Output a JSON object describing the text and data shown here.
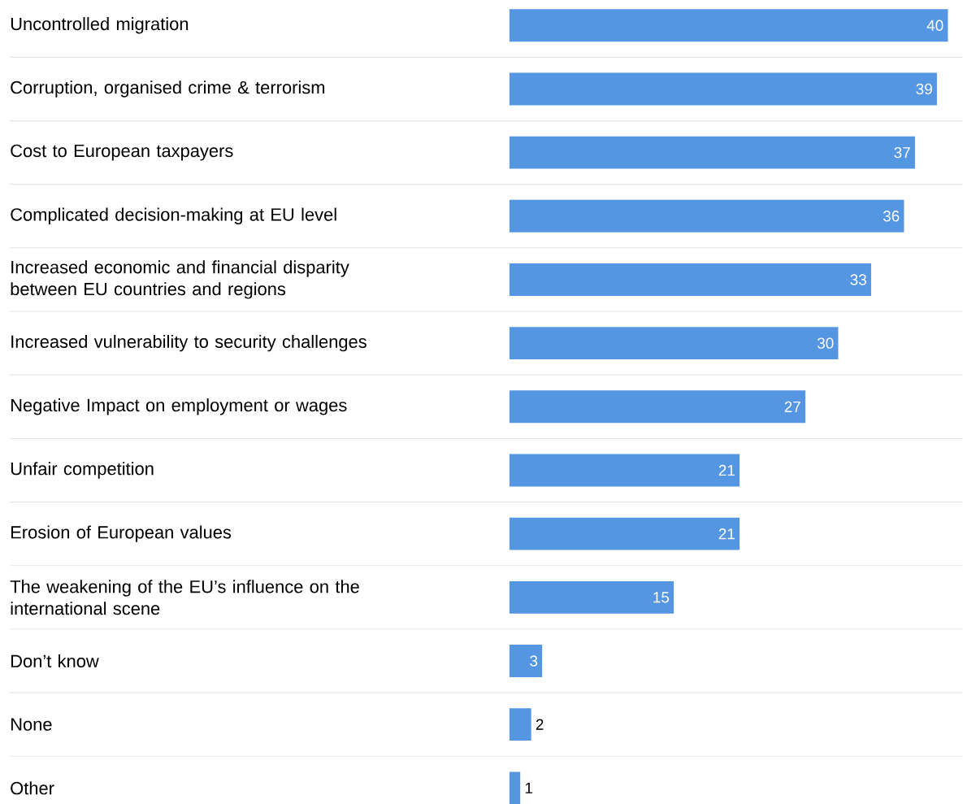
{
  "chart_data": {
    "type": "bar",
    "orientation": "horizontal",
    "data_labels": true,
    "grid": "y",
    "color": "#5596e3",
    "categories": [
      "Uncontrolled migration",
      "Corruption, organised crime & terrorism",
      "Cost to European taxpayers",
      "Complicated decision-making at EU level",
      "Increased economic and financial disparity between EU countries and regions",
      "Increased vulnerability to security challenges",
      "Negative Impact on employment or wages",
      "Unfair competition",
      "Erosion of European values",
      "The weakening of the EU’s influence on the international scene",
      "Don’t know",
      "None",
      "Other"
    ],
    "values": [
      40,
      39,
      37,
      36,
      33,
      30,
      27,
      21,
      21,
      15,
      3,
      2,
      1
    ]
  }
}
